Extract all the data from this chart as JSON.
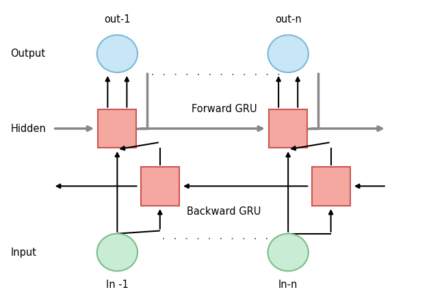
{
  "fig_width": 6.3,
  "fig_height": 4.3,
  "bg_color": "#ffffff",
  "output_circle_color": "#c8e6f5",
  "output_circle_edge": "#7ab8d9",
  "input_circle_color": "#c8ecd4",
  "input_circle_edge": "#7abd8a",
  "fwd_box_color": "#f4a8a0",
  "fwd_box_edge": "#cc5555",
  "bwd_box_color": "#f4a8a0",
  "bwd_box_edge": "#cc5555",
  "arrow_color": "#000000",
  "hidden_arrow_color": "#888888",
  "label_output": "Output",
  "label_hidden": "Hidden",
  "label_input": "Input",
  "label_out1": "out-1",
  "label_outn": "out-n",
  "label_in1": "In -1",
  "label_inn": "In-n",
  "label_fwd": "Forward GRU",
  "label_bwd": "Backward GRU",
  "font_size": 10.5
}
